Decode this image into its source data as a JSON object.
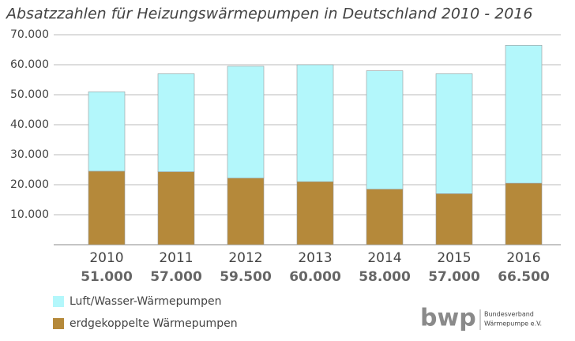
{
  "chart_data": {
    "type": "stacked_bar",
    "title": "Absatzzahlen für Heizungswärmepumpen in Deutschland 2010 - 2016",
    "categories": [
      "2010",
      "2011",
      "2012",
      "2013",
      "2014",
      "2015",
      "2016"
    ],
    "category_totals": [
      "51.000",
      "57.000",
      "59.500",
      "60.000",
      "58.000",
      "57.000",
      "66.500"
    ],
    "series": [
      {
        "name": "erdgekoppelte Wärmepumpen",
        "color": "#b5893a",
        "values": [
          24500,
          24300,
          22200,
          21000,
          18500,
          17000,
          20500
        ]
      },
      {
        "name": "Luft/Wasser-Wärmepumpen",
        "color": "#b3f7fb",
        "values": [
          26500,
          32700,
          37300,
          39000,
          39500,
          40000,
          46000
        ]
      }
    ],
    "ylim": [
      0,
      70000
    ],
    "yticks": [
      {
        "value": 10000,
        "label": "10.000"
      },
      {
        "value": 20000,
        "label": "20.000"
      },
      {
        "value": 30000,
        "label": "30.000"
      },
      {
        "value": 40000,
        "label": "40.000"
      },
      {
        "value": 50000,
        "label": "50.000"
      },
      {
        "value": 60000,
        "label": "60.000"
      },
      {
        "value": 70000,
        "label": "70.000"
      }
    ],
    "grid": true,
    "source": {
      "mark": "bwp",
      "line1": "Bundesverband",
      "line2": "Wärmepumpe e.V."
    }
  }
}
